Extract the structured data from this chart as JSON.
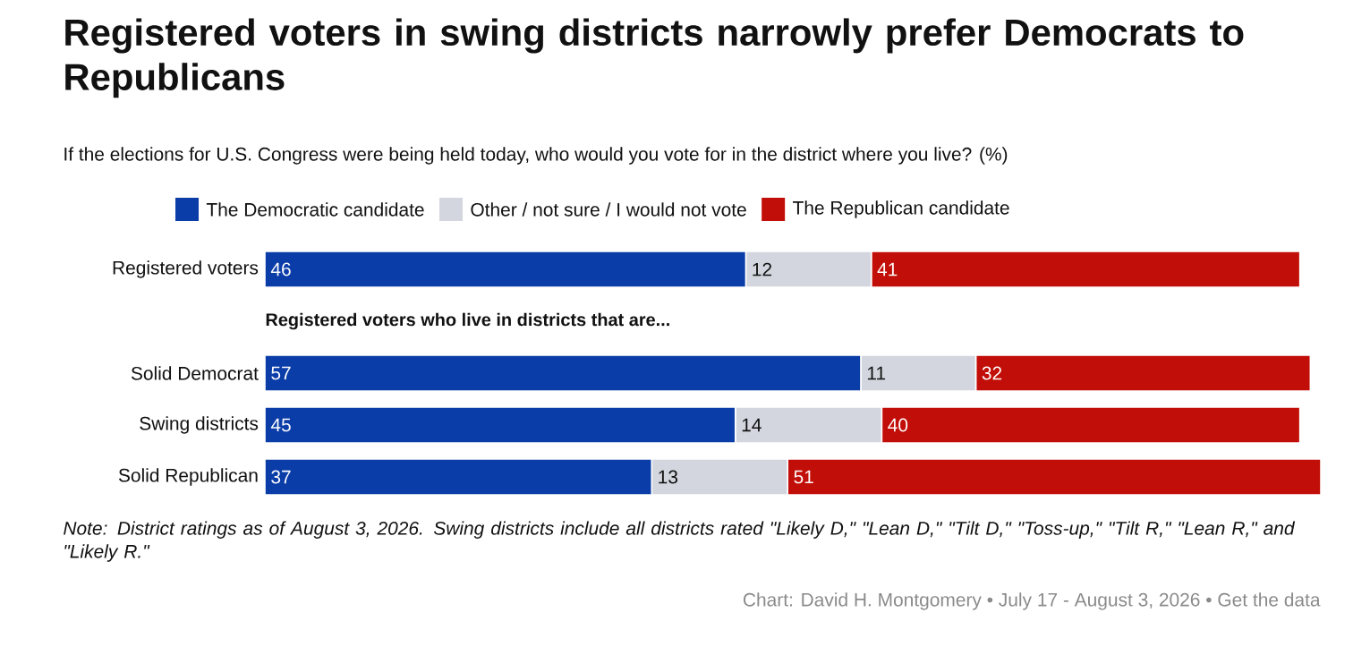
{
  "chart_data": {
    "type": "bar",
    "orientation": "horizontal",
    "stacked": true,
    "data_labels": true,
    "legend": "top",
    "title": "Registered voters in swing districts narrowly prefer Democrats to Republicans",
    "subtitle": "If the elections for U.S. Congress were being held today, who would you vote for in the district where you live? (%)",
    "categories": [
      "Registered voters",
      null,
      "Solid Democrat",
      "Swing districts",
      "Solid Republican"
    ],
    "series": [
      {
        "name": "The Democratic candidate",
        "color": "#0b3da8",
        "values": [
          46,
          null,
          57,
          45,
          37
        ]
      },
      {
        "name": "Other / not sure / I would not vote",
        "color": "#d3d6de",
        "values": [
          12,
          null,
          11,
          14,
          13
        ]
      },
      {
        "name": "The Republican candidate",
        "color": "#c20e08",
        "values": [
          41,
          null,
          32,
          40,
          51
        ]
      }
    ],
    "annotations": [
      "Registered voters who live in districts that are...",
      "Note: District ratings as of August 3, 2026. Swing districts include all districts rated \"Likely D,\" \"Lean D,\" \"Tilt D,\" \"Toss-up,\" \"Tilt R,\" \"Lean R,\" and \"Likely R.\"",
      "Chart: David H. Montgomery • July 17 - August 3, 2026 • Get the data"
    ]
  }
}
